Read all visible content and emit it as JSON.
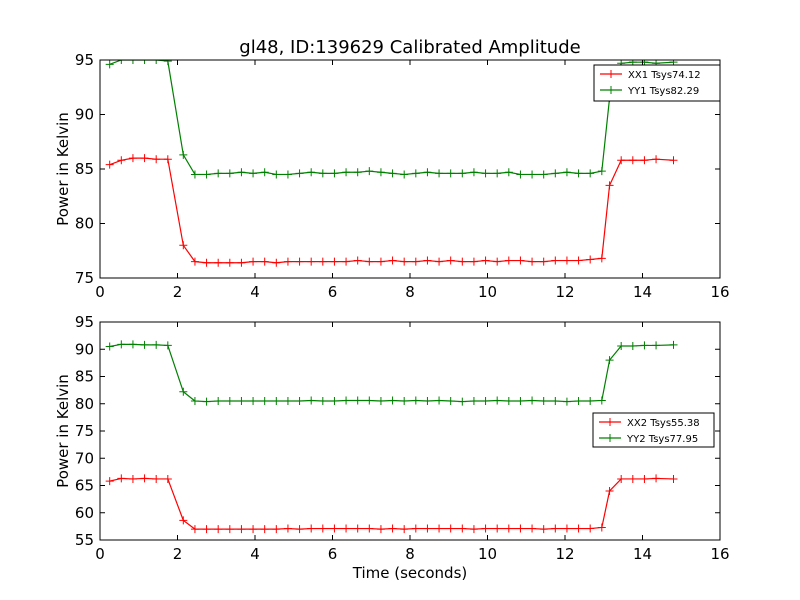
{
  "figure": {
    "title": "gl48, ID:139629 Calibrated Amplitude",
    "xlabel": "Time (seconds)"
  },
  "chart_data": [
    {
      "type": "line",
      "id": "top",
      "title": "gl48, ID:139629 Calibrated Amplitude",
      "xlabel": "",
      "ylabel": "Power in Kelvin",
      "xlim": [
        0,
        16
      ],
      "ylim": [
        75,
        95
      ],
      "xticks": [
        0,
        2,
        4,
        6,
        8,
        10,
        12,
        14,
        16
      ],
      "yticks": [
        75,
        80,
        85,
        90,
        95
      ],
      "legend_position": "top-right",
      "x": [
        0.25,
        0.55,
        0.85,
        1.15,
        1.45,
        1.75,
        2.15,
        2.45,
        2.75,
        3.05,
        3.35,
        3.65,
        3.95,
        4.25,
        4.55,
        4.85,
        5.15,
        5.45,
        5.75,
        6.05,
        6.35,
        6.65,
        6.95,
        7.25,
        7.55,
        7.85,
        8.15,
        8.45,
        8.75,
        9.05,
        9.35,
        9.65,
        9.95,
        10.25,
        10.55,
        10.85,
        11.15,
        11.45,
        11.75,
        12.05,
        12.35,
        12.65,
        12.95,
        13.15,
        13.45,
        13.75,
        14.05,
        14.35,
        14.8
      ],
      "series": [
        {
          "name": "XX1 Tsys74.12",
          "color": "#ff0000",
          "values": [
            85.4,
            85.8,
            86.0,
            86.0,
            85.9,
            85.9,
            78.0,
            76.5,
            76.4,
            76.4,
            76.4,
            76.4,
            76.5,
            76.5,
            76.4,
            76.5,
            76.5,
            76.5,
            76.5,
            76.5,
            76.5,
            76.6,
            76.5,
            76.5,
            76.6,
            76.5,
            76.5,
            76.6,
            76.5,
            76.6,
            76.5,
            76.5,
            76.6,
            76.5,
            76.6,
            76.6,
            76.5,
            76.5,
            76.6,
            76.6,
            76.6,
            76.7,
            76.8,
            83.5,
            85.8,
            85.8,
            85.8,
            85.9,
            85.8
          ]
        },
        {
          "name": "YY1 Tsys82.29",
          "color": "#008000",
          "values": [
            94.6,
            95.0,
            95.0,
            95.0,
            95.0,
            94.9,
            86.3,
            84.5,
            84.5,
            84.6,
            84.6,
            84.7,
            84.6,
            84.7,
            84.5,
            84.5,
            84.6,
            84.7,
            84.6,
            84.6,
            84.7,
            84.7,
            84.8,
            84.7,
            84.6,
            84.5,
            84.6,
            84.7,
            84.6,
            84.6,
            84.6,
            84.7,
            84.6,
            84.6,
            84.7,
            84.5,
            84.5,
            84.5,
            84.6,
            84.7,
            84.6,
            84.6,
            84.8,
            91.5,
            94.7,
            94.8,
            94.8,
            94.7,
            94.8
          ]
        }
      ]
    },
    {
      "type": "line",
      "id": "bottom",
      "title": "",
      "xlabel": "Time (seconds)",
      "ylabel": "Power in Kelvin",
      "xlim": [
        0,
        16
      ],
      "ylim": [
        55,
        95
      ],
      "xticks": [
        0,
        2,
        4,
        6,
        8,
        10,
        12,
        14,
        16
      ],
      "yticks": [
        55,
        60,
        65,
        70,
        75,
        80,
        85,
        90,
        95
      ],
      "legend_position": "center-right",
      "x": [
        0.25,
        0.55,
        0.85,
        1.15,
        1.45,
        1.75,
        2.15,
        2.45,
        2.75,
        3.05,
        3.35,
        3.65,
        3.95,
        4.25,
        4.55,
        4.85,
        5.15,
        5.45,
        5.75,
        6.05,
        6.35,
        6.65,
        6.95,
        7.25,
        7.55,
        7.85,
        8.15,
        8.45,
        8.75,
        9.05,
        9.35,
        9.65,
        9.95,
        10.25,
        10.55,
        10.85,
        11.15,
        11.45,
        11.75,
        12.05,
        12.35,
        12.65,
        12.95,
        13.15,
        13.45,
        13.75,
        14.05,
        14.35,
        14.8
      ],
      "series": [
        {
          "name": "XX2 Tsys55.38",
          "color": "#ff0000",
          "values": [
            65.8,
            66.3,
            66.2,
            66.3,
            66.2,
            66.2,
            58.6,
            57.0,
            57.0,
            57.0,
            57.0,
            57.0,
            57.0,
            57.0,
            57.0,
            57.1,
            57.0,
            57.1,
            57.1,
            57.1,
            57.1,
            57.1,
            57.1,
            57.0,
            57.1,
            57.0,
            57.1,
            57.1,
            57.1,
            57.1,
            57.1,
            57.0,
            57.1,
            57.1,
            57.1,
            57.1,
            57.1,
            57.0,
            57.1,
            57.1,
            57.1,
            57.1,
            57.3,
            64.0,
            66.2,
            66.2,
            66.2,
            66.3,
            66.2
          ]
        },
        {
          "name": "YY2 Tsys77.95",
          "color": "#008000",
          "values": [
            90.5,
            90.9,
            90.9,
            90.8,
            90.8,
            90.7,
            82.2,
            80.5,
            80.4,
            80.5,
            80.5,
            80.5,
            80.5,
            80.5,
            80.5,
            80.5,
            80.5,
            80.6,
            80.5,
            80.5,
            80.6,
            80.6,
            80.6,
            80.5,
            80.6,
            80.5,
            80.6,
            80.5,
            80.6,
            80.5,
            80.4,
            80.5,
            80.5,
            80.6,
            80.5,
            80.5,
            80.6,
            80.5,
            80.5,
            80.4,
            80.5,
            80.5,
            80.6,
            88.0,
            90.6,
            90.6,
            90.7,
            90.7,
            90.8
          ]
        }
      ]
    }
  ]
}
